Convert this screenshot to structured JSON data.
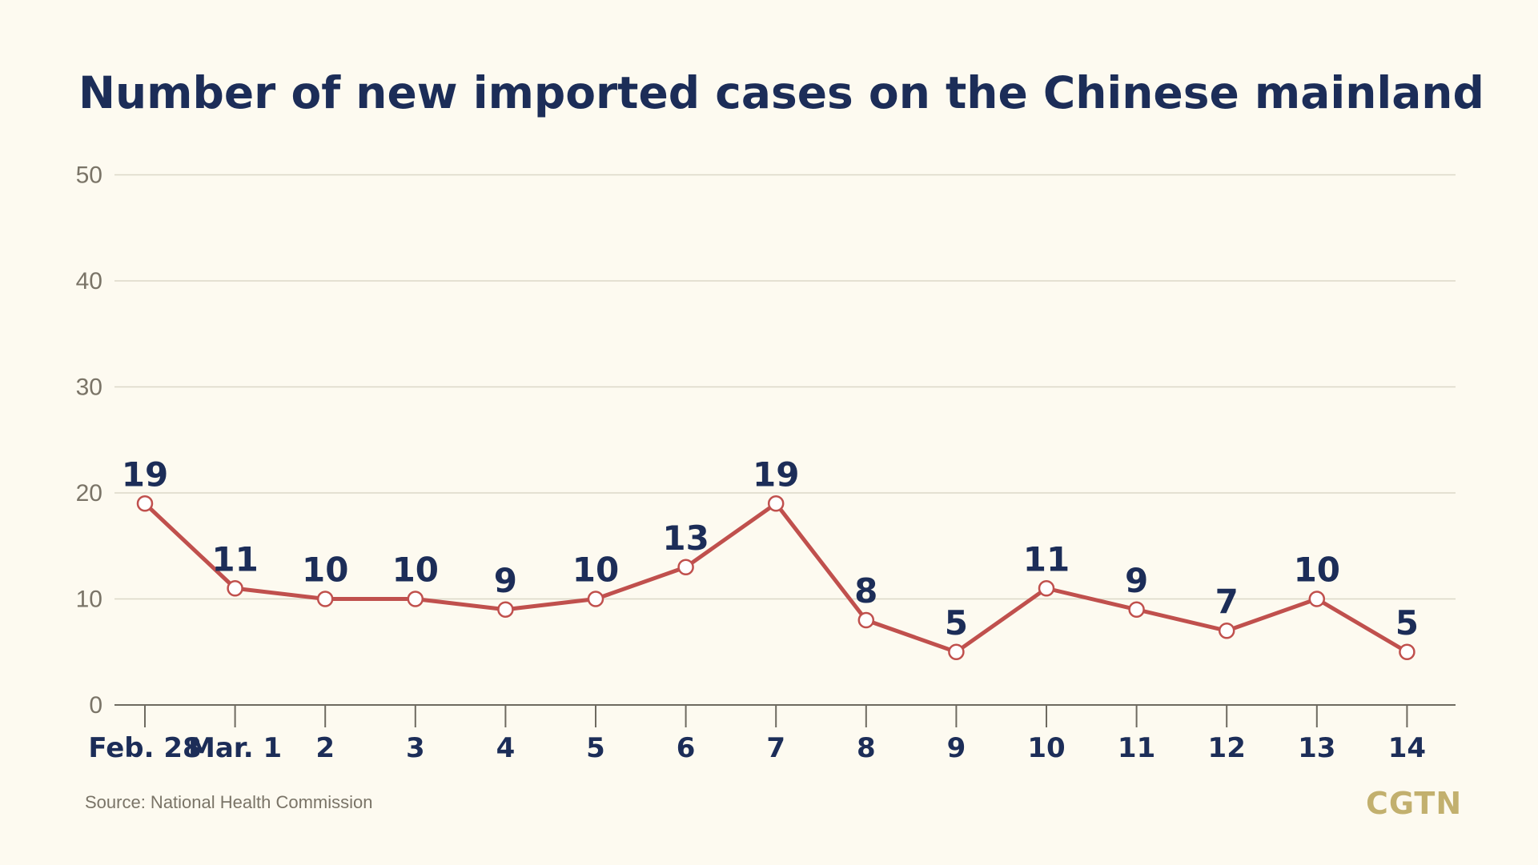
{
  "chart_data": {
    "type": "line",
    "title": "Number of new imported cases on the Chinese mainland",
    "categories": [
      "Feb. 28",
      "Mar. 1",
      "2",
      "3",
      "4",
      "5",
      "6",
      "7",
      "8",
      "9",
      "10",
      "11",
      "12",
      "13",
      "14"
    ],
    "series": [
      {
        "values": [
          19,
          11,
          10,
          10,
          9,
          10,
          13,
          19,
          8,
          5,
          11,
          9,
          7,
          10,
          5
        ],
        "color": "#c0504d"
      }
    ],
    "yticks": [
      0,
      10,
      20,
      30,
      40,
      50
    ],
    "ylim": [
      0,
      50
    ],
    "grid": true,
    "xlabel": "",
    "ylabel": ""
  },
  "footer": {
    "source": "Source: National Health Commission",
    "logo": "CGTN"
  },
  "colors": {
    "background": "#fdfaf0",
    "title": "#1c2d58",
    "line": "#c0504d",
    "grid": "#dcd7c8",
    "tick": "#7a7467",
    "logo": "#c2b06e"
  }
}
